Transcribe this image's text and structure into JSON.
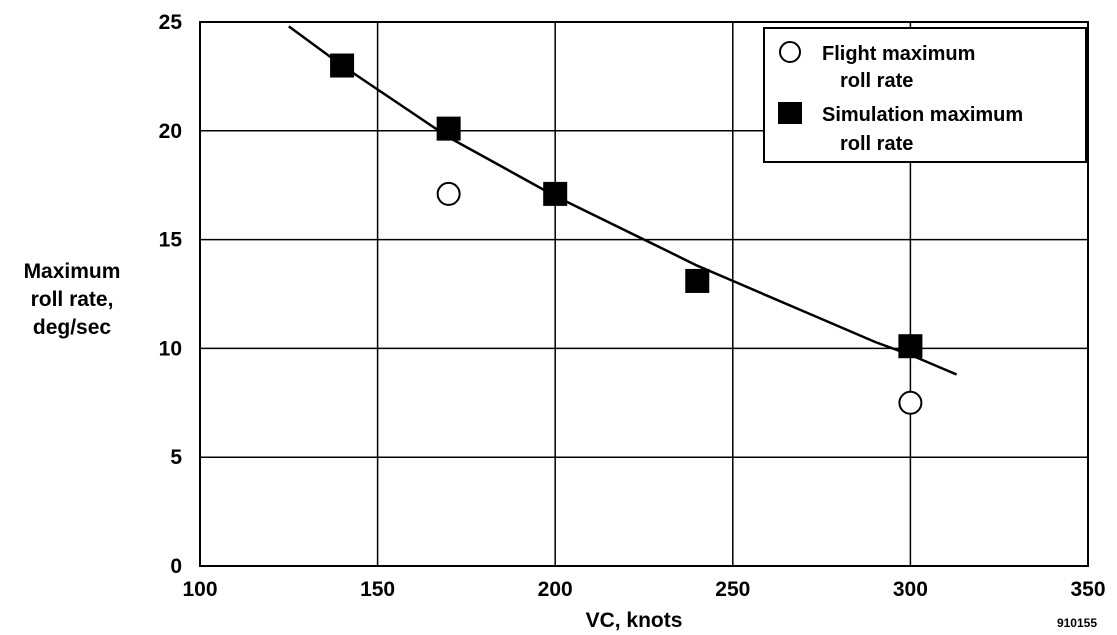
{
  "chart_data": {
    "type": "scatter",
    "xlabel": "VC, knots",
    "ylabel_lines": [
      "Maximum",
      "roll rate,",
      "deg/sec"
    ],
    "xlim": [
      100,
      350
    ],
    "ylim": [
      0,
      25
    ],
    "x_ticks": [
      100,
      150,
      200,
      250,
      300,
      350
    ],
    "y_ticks": [
      0,
      5,
      10,
      15,
      20,
      25
    ],
    "grid": true,
    "legend_position": "top-right",
    "series": [
      {
        "name": "Flight maximum roll rate",
        "legend_lines": [
          "Flight maximum",
          "roll rate"
        ],
        "marker": "open-circle",
        "x": [
          170,
          300
        ],
        "y": [
          17.1,
          7.5
        ]
      },
      {
        "name": "Simulation maximum roll rate",
        "legend_lines": [
          "Simulation maximum",
          "roll rate"
        ],
        "marker": "filled-square",
        "x": [
          140,
          170,
          200,
          240,
          300
        ],
        "y": [
          23.0,
          20.1,
          17.1,
          13.1,
          10.1
        ]
      }
    ],
    "fit_curve": {
      "x": [
        125,
        140,
        150,
        160,
        170,
        180,
        190,
        200,
        210,
        220,
        230,
        240,
        250,
        260,
        270,
        280,
        290,
        300,
        313
      ],
      "y": [
        24.8,
        23.0,
        21.9,
        20.8,
        19.7,
        18.8,
        17.9,
        17.0,
        16.2,
        15.4,
        14.6,
        13.8,
        13.1,
        12.4,
        11.7,
        11.0,
        10.3,
        9.7,
        8.8
      ]
    },
    "figure_number": "910155"
  }
}
